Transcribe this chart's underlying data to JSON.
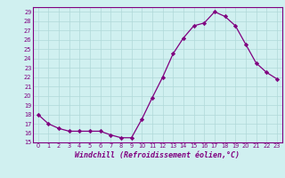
{
  "x": [
    0,
    1,
    2,
    3,
    4,
    5,
    6,
    7,
    8,
    9,
    10,
    11,
    12,
    13,
    14,
    15,
    16,
    17,
    18,
    19,
    20,
    21,
    22,
    23
  ],
  "y": [
    18,
    17,
    16.5,
    16.2,
    16.2,
    16.2,
    16.2,
    15.8,
    15.5,
    15.5,
    17.5,
    19.8,
    22.0,
    24.5,
    26.2,
    27.5,
    27.8,
    29.0,
    28.5,
    27.5,
    25.5,
    23.5,
    22.5,
    21.8
  ],
  "ylim": [
    15,
    29
  ],
  "yticks": [
    15,
    16,
    17,
    18,
    19,
    20,
    21,
    22,
    23,
    24,
    25,
    26,
    27,
    28,
    29
  ],
  "xticks": [
    0,
    1,
    2,
    3,
    4,
    5,
    6,
    7,
    8,
    9,
    10,
    11,
    12,
    13,
    14,
    15,
    16,
    17,
    18,
    19,
    20,
    21,
    22,
    23
  ],
  "xlabel": "Windchill (Refroidissement éolien,°C)",
  "line_color": "#800080",
  "marker": "D",
  "marker_size": 2.2,
  "bg_color": "#d0f0f0",
  "grid_color": "#b0d8d8",
  "title": ""
}
